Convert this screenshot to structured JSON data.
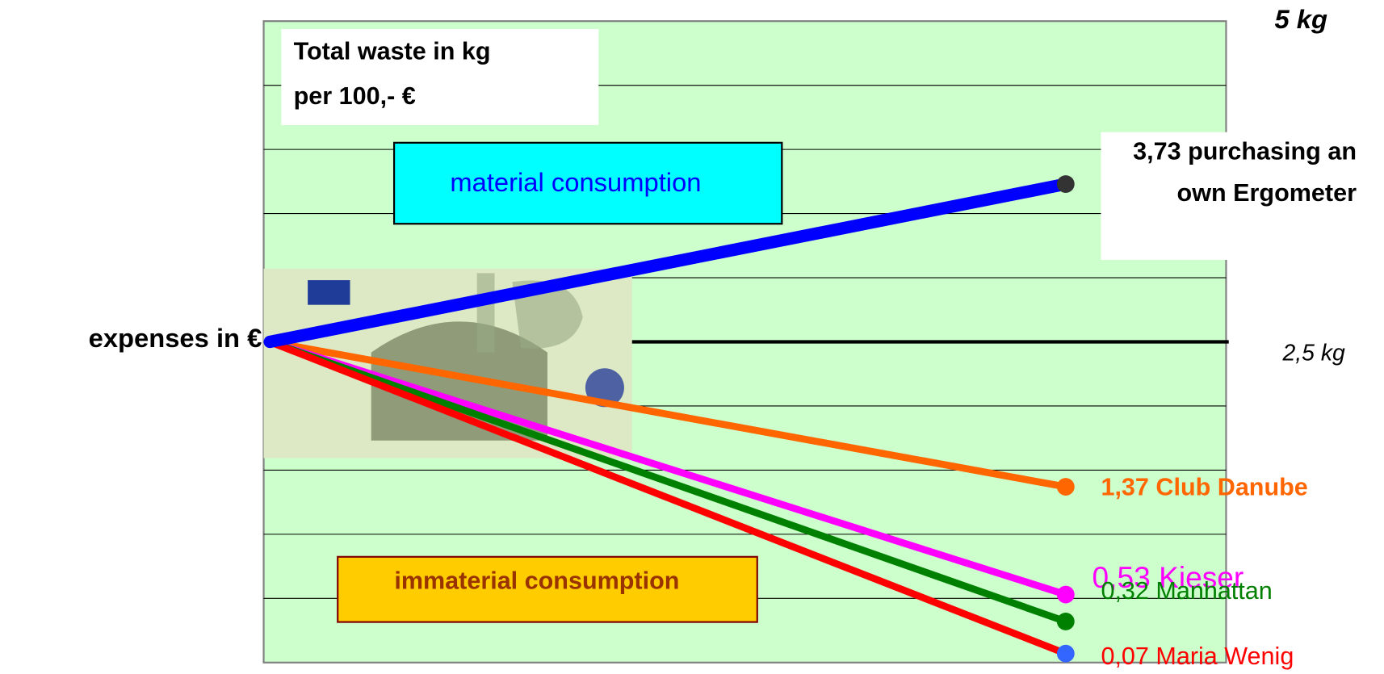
{
  "chart_data": {
    "type": "slope",
    "title_lines": [
      "Total waste in kg",
      "per 100,- €"
    ],
    "origin_label": "expenses in €",
    "baseline": 2.5,
    "annotations": [
      "material consumption",
      "immaterial consumption"
    ],
    "ylim": [
      0,
      5
    ],
    "yticks": [
      {
        "value": 5,
        "label": "5 kg"
      },
      {
        "value": 2.5,
        "label": "2,5 kg"
      }
    ],
    "ygrid": [
      0.5,
      1,
      1.5,
      2,
      3,
      3.5,
      4,
      4.5
    ],
    "series": [
      {
        "name": "purchasing an own Ergometer",
        "color": "#0000ff",
        "marker_color": "#333333",
        "value": 3.73,
        "value_label": "3,73"
      },
      {
        "name": "Club Danube",
        "color": "#ff6600",
        "marker_color": "#ff6600",
        "value": 1.37,
        "value_label": "1,37"
      },
      {
        "name": "Kieser",
        "color": "#ff00ff",
        "marker_color": "#ff00ff",
        "value": 0.53,
        "value_label": "0,53"
      },
      {
        "name": "Manhattan",
        "color": "#008000",
        "marker_color": "#008000",
        "value": 0.32,
        "value_label": "0,32"
      },
      {
        "name": "Maria Wenig",
        "color": "#ff0000",
        "marker_color": "#3366ff",
        "value": 0.07,
        "value_label": "0,07"
      }
    ]
  }
}
